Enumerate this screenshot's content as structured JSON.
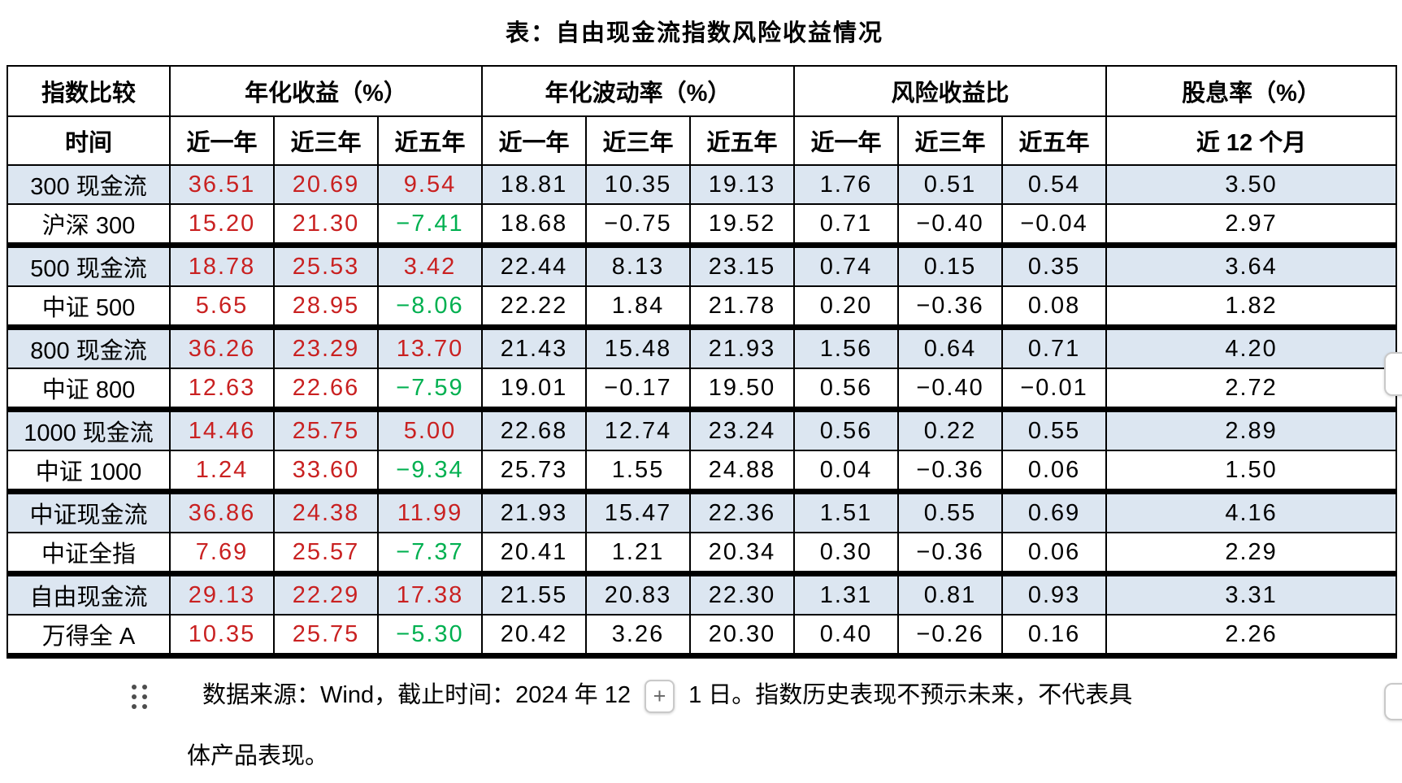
{
  "title": "表：自由现金流指数风险收益情况",
  "table": {
    "header_groups": [
      {
        "label": "指数比较",
        "colspan": 1
      },
      {
        "label": "年化收益（%）",
        "colspan": 3
      },
      {
        "label": "年化波动率（%）",
        "colspan": 3
      },
      {
        "label": "风险收益比",
        "colspan": 3
      },
      {
        "label": "股息率（%）",
        "colspan": 1
      }
    ],
    "subheader": [
      "时间",
      "近一年",
      "近三年",
      "近五年",
      "近一年",
      "近三年",
      "近五年",
      "近一年",
      "近三年",
      "近五年",
      "近 12 个月"
    ],
    "colored_value_columns": 3,
    "rows": [
      {
        "label": "300 现金流",
        "highlight": true,
        "values": [
          "36.51",
          "20.69",
          "9.54",
          "18.81",
          "10.35",
          "19.13",
          "1.76",
          "0.51",
          "0.54",
          "3.50"
        ]
      },
      {
        "label": "沪深 300",
        "highlight": false,
        "values": [
          "15.20",
          "21.30",
          "-7.41",
          "18.68",
          "-0.75",
          "19.52",
          "0.71",
          "-0.40",
          "-0.04",
          "2.97"
        ]
      },
      {
        "label": "500 现金流",
        "highlight": true,
        "values": [
          "18.78",
          "25.53",
          "3.42",
          "22.44",
          "8.13",
          "23.15",
          "0.74",
          "0.15",
          "0.35",
          "3.64"
        ]
      },
      {
        "label": "中证 500",
        "highlight": false,
        "values": [
          "5.65",
          "28.95",
          "-8.06",
          "22.22",
          "1.84",
          "21.78",
          "0.20",
          "-0.36",
          "0.08",
          "1.82"
        ]
      },
      {
        "label": "800 现金流",
        "highlight": true,
        "values": [
          "36.26",
          "23.29",
          "13.70",
          "21.43",
          "15.48",
          "21.93",
          "1.56",
          "0.64",
          "0.71",
          "4.20"
        ]
      },
      {
        "label": "中证 800",
        "highlight": false,
        "values": [
          "12.63",
          "22.66",
          "-7.59",
          "19.01",
          "-0.17",
          "19.50",
          "0.56",
          "-0.40",
          "-0.01",
          "2.72"
        ]
      },
      {
        "label": "1000 现金流",
        "highlight": true,
        "values": [
          "14.46",
          "25.75",
          "5.00",
          "22.68",
          "12.74",
          "23.24",
          "0.56",
          "0.22",
          "0.55",
          "2.89"
        ]
      },
      {
        "label": "中证 1000",
        "highlight": false,
        "values": [
          "1.24",
          "33.60",
          "-9.34",
          "25.73",
          "1.55",
          "24.88",
          "0.04",
          "-0.36",
          "0.06",
          "1.50"
        ]
      },
      {
        "label": "中证现金流",
        "highlight": true,
        "values": [
          "36.86",
          "24.38",
          "11.99",
          "21.93",
          "15.47",
          "22.36",
          "1.51",
          "0.55",
          "0.69",
          "4.16"
        ]
      },
      {
        "label": "中证全指",
        "highlight": false,
        "values": [
          "7.69",
          "25.57",
          "-7.37",
          "20.41",
          "1.21",
          "20.34",
          "0.30",
          "-0.36",
          "0.06",
          "2.29"
        ]
      },
      {
        "label": "自由现金流",
        "highlight": true,
        "values": [
          "29.13",
          "22.29",
          "17.38",
          "21.55",
          "20.83",
          "22.30",
          "1.31",
          "0.81",
          "0.93",
          "3.31"
        ]
      },
      {
        "label": "万得全 A",
        "highlight": false,
        "values": [
          "10.35",
          "25.75",
          "-5.30",
          "20.42",
          "3.26",
          "20.30",
          "0.40",
          "-0.26",
          "0.16",
          "2.26"
        ]
      }
    ]
  },
  "footer": {
    "before_button": "数据来源：Wind，截止时间：2024 年 12",
    "button_label": "+",
    "after_button": "1 日。指数历史表现不预示未来，不代表具",
    "line2": "体产品表现。"
  },
  "colors": {
    "positive": "#c92121",
    "negative": "#00b050",
    "highlight_row_bg": "#dce6f1"
  }
}
